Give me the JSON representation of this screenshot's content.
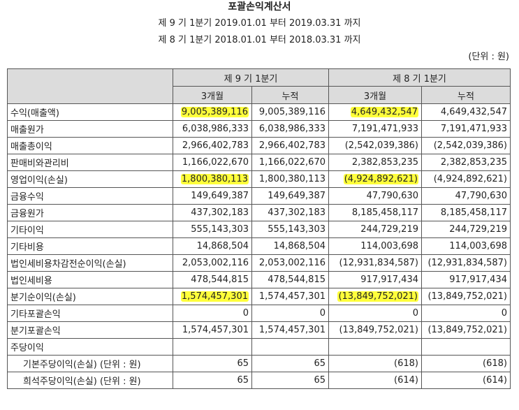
{
  "header": {
    "title": "포괄손익계산서",
    "periods": [
      "제 9 기 1분기 2019.01.01 부터 2019.03.31 까지",
      "제 8 기 1분기 2018.01.01 부터 2018.03.31 까지"
    ],
    "unit": "(단위 : 원)"
  },
  "table": {
    "groups": [
      "제 9 기 1분기",
      "제 8 기 1분기"
    ],
    "subheaders": [
      "3개월",
      "누적",
      "3개월",
      "누적"
    ],
    "rows": [
      {
        "label": "수익(매출액)",
        "values": [
          "9,005,389,116",
          "9,005,389,116",
          "4,649,432,547",
          "4,649,432,547"
        ],
        "highlight": [
          0,
          2
        ]
      },
      {
        "label": "매출원가",
        "values": [
          "6,038,986,333",
          "6,038,986,333",
          "7,191,471,933",
          "7,191,471,933"
        ]
      },
      {
        "label": "매출총이익",
        "values": [
          "2,966,402,783",
          "2,966,402,783",
          "(2,542,039,386)",
          "(2,542,039,386)"
        ]
      },
      {
        "label": "판매비와관리비",
        "values": [
          "1,166,022,670",
          "1,166,022,670",
          "2,382,853,235",
          "2,382,853,235"
        ]
      },
      {
        "label": "영업이익(손실)",
        "values": [
          "1,800,380,113",
          "1,800,380,113",
          "(4,924,892,621)",
          "(4,924,892,621)"
        ],
        "highlight": [
          0,
          2
        ]
      },
      {
        "label": "금융수익",
        "values": [
          "149,649,387",
          "149,649,387",
          "47,790,630",
          "47,790,630"
        ]
      },
      {
        "label": "금융원가",
        "values": [
          "437,302,183",
          "437,302,183",
          "8,185,458,117",
          "8,185,458,117"
        ]
      },
      {
        "label": "기타이익",
        "values": [
          "555,143,303",
          "555,143,303",
          "244,729,219",
          "244,729,219"
        ]
      },
      {
        "label": "기타비용",
        "values": [
          "14,868,504",
          "14,868,504",
          "114,003,698",
          "114,003,698"
        ]
      },
      {
        "label": "법인세비용차감전순이익(손실)",
        "values": [
          "2,053,002,116",
          "2,053,002,116",
          "(12,931,834,587)",
          "(12,931,834,587)"
        ]
      },
      {
        "label": "법인세비용",
        "values": [
          "478,544,815",
          "478,544,815",
          "917,917,434",
          "917,917,434"
        ]
      },
      {
        "label": "분기순이익(손실)",
        "values": [
          "1,574,457,301",
          "1,574,457,301",
          "(13,849,752,021)",
          "(13,849,752,021)"
        ],
        "highlight": [
          0,
          2
        ]
      },
      {
        "label": "기타포괄손익",
        "values": [
          "0",
          "0",
          "0",
          "0"
        ]
      },
      {
        "label": "분기포괄손익",
        "values": [
          "1,574,457,301",
          "1,574,457,301",
          "(13,849,752,021)",
          "(13,849,752,021)"
        ]
      },
      {
        "label": "주당이익",
        "values": [
          "",
          "",
          "",
          ""
        ]
      },
      {
        "label": "기본주당이익(손실) (단위 : 원)",
        "values": [
          "65",
          "65",
          "(618)",
          "(618)"
        ],
        "indent": true
      },
      {
        "label": "희석주당이익(손실) (단위 : 원)",
        "values": [
          "65",
          "65",
          "(614)",
          "(614)"
        ],
        "indent": true
      }
    ]
  }
}
